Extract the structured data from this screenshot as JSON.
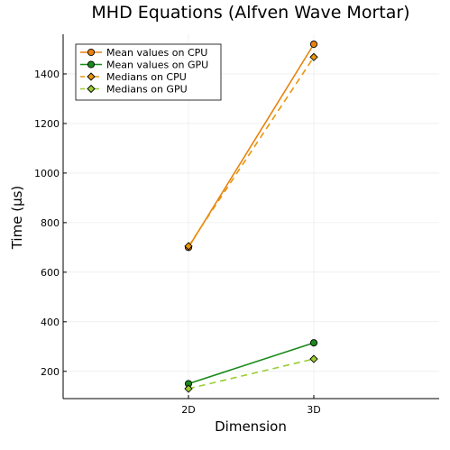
{
  "chart_data": {
    "type": "line",
    "title": "MHD Equations (Alfven Wave Mortar)",
    "xlabel": "Dimension",
    "ylabel": "Time (µs)",
    "categories": [
      "2D",
      "3D"
    ],
    "xlim": [
      0,
      3
    ],
    "ylim": [
      90,
      1560
    ],
    "yticks": [
      200,
      400,
      600,
      800,
      1000,
      1200,
      1400
    ],
    "grid": true,
    "legend_position": "top-left",
    "series": [
      {
        "name": "Mean values on CPU",
        "values": [
          700,
          1520
        ],
        "color": "#e8820c",
        "dash": "solid",
        "marker": "circle"
      },
      {
        "name": "Mean values on GPU",
        "values": [
          150,
          315
        ],
        "color": "#1a8a1a",
        "dash": "solid",
        "marker": "circle"
      },
      {
        "name": "Medians on CPU",
        "values": [
          705,
          1468
        ],
        "color": "#e8960c",
        "dash": "dashed",
        "marker": "diamond"
      },
      {
        "name": "Medians on GPU",
        "values": [
          130,
          250
        ],
        "color": "#9acd32",
        "dash": "dashed",
        "marker": "diamond"
      }
    ]
  }
}
